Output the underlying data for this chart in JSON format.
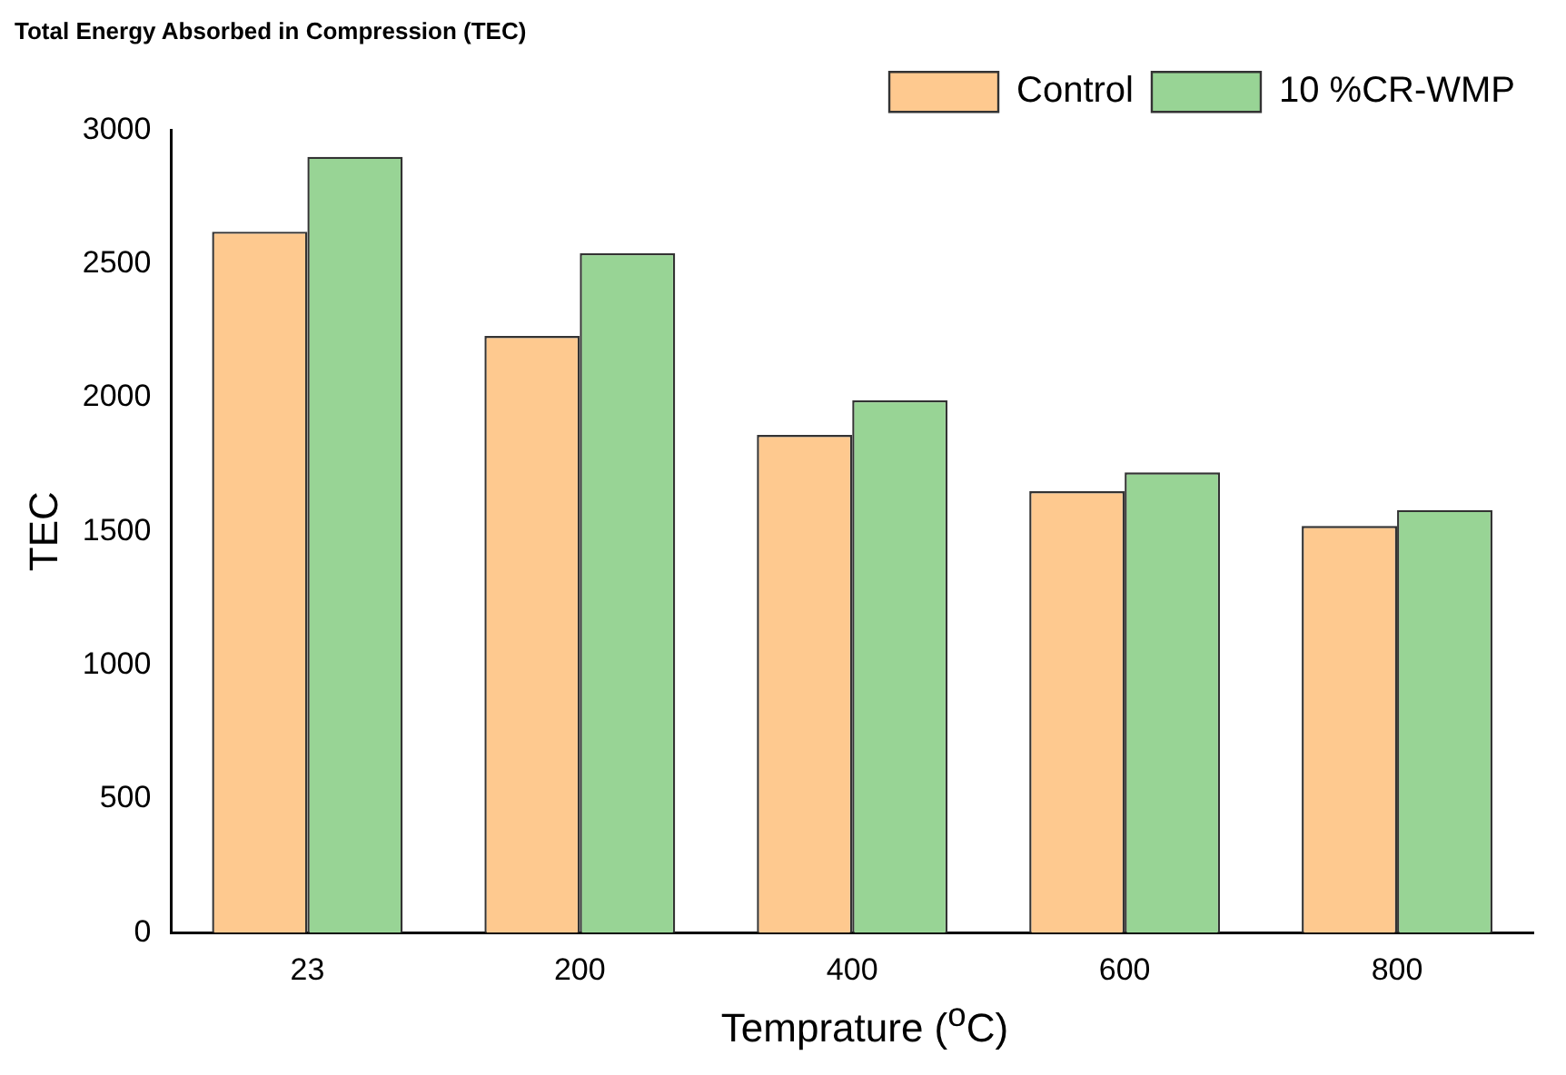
{
  "chart_data": {
    "type": "bar",
    "title": "Total Energy Absorbed in Compression (TEC)",
    "xlabel": "Temprature ($^{o}$C)",
    "ylabel": "TEC",
    "categories": [
      "23",
      "200",
      "400",
      "600",
      "800"
    ],
    "series": [
      {
        "name": "Control",
        "color": "#fec98f",
        "values": [
          2620,
          2230,
          1860,
          1650,
          1520
        ]
      },
      {
        "name": "10 %CR-WMP",
        "color": "#98d495",
        "values": [
          2900,
          2540,
          1990,
          1720,
          1580
        ]
      }
    ],
    "ylim": [
      0,
      3000
    ],
    "yticks": [
      0,
      500,
      1000,
      1500,
      2000,
      2500,
      3000
    ],
    "grid": false,
    "legend": "top right"
  }
}
